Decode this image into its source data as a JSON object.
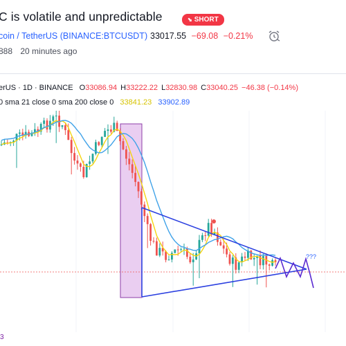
{
  "idea": {
    "title": "C is volatile and unpredictable",
    "badge": "SHORT"
  },
  "symbol": {
    "name": "coin / TetherUS",
    "exchange": "(BINANCE:BTCUSDT)",
    "price": "33017.55",
    "change": "−69.08",
    "change_pct": "−0.21%"
  },
  "meta": {
    "id": "888",
    "time": "20 minutes ago"
  },
  "legend": {
    "pair": "erUS · 1D · BINANCE",
    "o_label": "O",
    "o_value": "33086.94",
    "h_label": "H",
    "h_value": "33222.22",
    "l_label": "L",
    "l_value": "32830.98",
    "c_label": "C",
    "c_value": "33040.25",
    "change": "−46.38 (−0.14%)",
    "sma_text": "0 sma 21 close 0 sma 200 close 0",
    "sma21_value": "33841.23",
    "sma200_value": "33902.89"
  },
  "annotations": {
    "question": "???"
  },
  "bottom_label": "3",
  "colors": {
    "up": "#26a69a",
    "down": "#ef5350",
    "sma21": "#f5d40f",
    "sma200": "#3fa2e8",
    "trendline": "#2a3fe0",
    "highlight_fill": "#e6c6ef",
    "highlight_stroke": "#8e3ea8",
    "projection": "#5b2bd1",
    "badge": "#f23645"
  }
}
